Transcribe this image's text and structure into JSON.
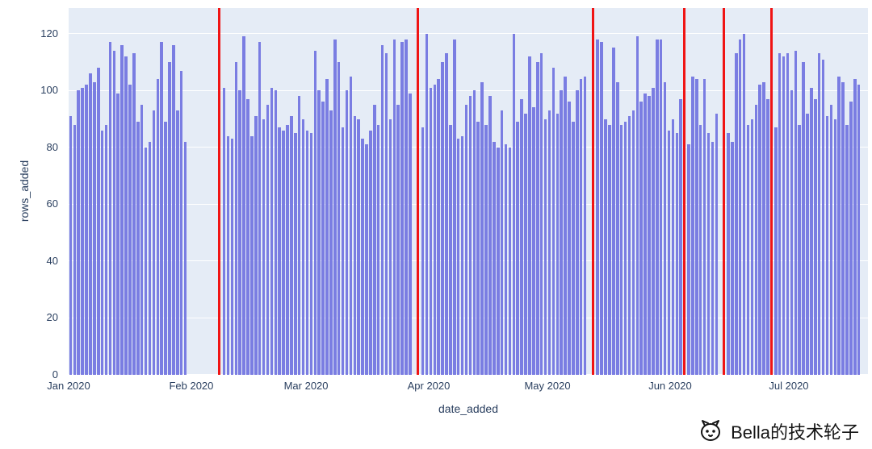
{
  "watermark": {
    "text": "Bella的技术轮子"
  },
  "chart_data": {
    "type": "bar",
    "title": "",
    "xlabel": "date_added",
    "ylabel": "rows_added",
    "ylim": [
      0,
      129
    ],
    "yticks": [
      0,
      20,
      40,
      60,
      80,
      100,
      120
    ],
    "x_tick_labels": [
      "Jan 2020",
      "Feb 2020",
      "Mar 2020",
      "Apr 2020",
      "May 2020",
      "Jun 2020",
      "Jul 2020"
    ],
    "x_tick_days": [
      0,
      31,
      60,
      91,
      121,
      152,
      182
    ],
    "x_total_days": 202,
    "grid": true,
    "legend": "none",
    "figure_bg": "#ffffff",
    "plot_bg": "#e5ecf6",
    "grid_color": "#ffffff",
    "bar_color": "#7a7de2",
    "vline_color": "#f01414",
    "tick_color": "#2a3f5f",
    "vlines_day": [
      38,
      88.3,
      132.6,
      155.6,
      165.6,
      177.6
    ],
    "segments": [
      {
        "start_day": 0,
        "values": [
          91,
          88,
          100,
          101,
          102,
          106,
          103,
          108,
          86,
          88,
          117,
          114,
          99,
          116,
          112,
          102,
          113,
          89,
          95,
          80,
          82,
          93,
          104,
          117,
          89,
          110,
          116,
          93,
          107,
          82
        ]
      },
      {
        "start_day": 38.8,
        "values": [
          101,
          84,
          83,
          110,
          100,
          119,
          97,
          84,
          91,
          117,
          90,
          95,
          101,
          100,
          87,
          86,
          88,
          91,
          85,
          98,
          90,
          86,
          85,
          114,
          100,
          96,
          104,
          93,
          118,
          110,
          87,
          100,
          105,
          91,
          90,
          83,
          81,
          86,
          95,
          88,
          116,
          113,
          90,
          118,
          95,
          117,
          118,
          99
        ]
      },
      {
        "start_day": 89,
        "values": [
          87,
          120,
          101,
          102,
          104,
          110,
          113,
          88,
          118,
          83,
          84,
          95,
          98,
          100,
          89,
          103,
          88,
          98,
          82,
          80,
          93,
          81,
          80,
          120,
          89,
          97,
          92,
          112,
          94,
          110,
          113,
          90,
          93,
          108,
          92,
          100,
          105,
          96,
          89,
          100,
          104,
          105
        ]
      },
      {
        "start_day": 133.2,
        "values": [
          118,
          117,
          90,
          88,
          115,
          103,
          88,
          89,
          91,
          93,
          119,
          96,
          99,
          98,
          101,
          118,
          118,
          103,
          86,
          90,
          85,
          97
        ]
      },
      {
        "start_day": 156.2,
        "values": [
          81,
          105,
          104,
          88,
          104,
          85,
          82,
          92
        ]
      },
      {
        "start_day": 166.2,
        "values": [
          85,
          82,
          113,
          118,
          120,
          88,
          90,
          95,
          102,
          103,
          97
        ]
      },
      {
        "start_day": 178.2,
        "values": [
          87,
          113,
          112,
          113,
          100,
          114,
          88,
          110,
          92,
          101,
          97,
          113,
          111,
          91,
          95,
          90,
          105,
          103,
          88,
          96,
          104,
          102
        ]
      }
    ]
  }
}
